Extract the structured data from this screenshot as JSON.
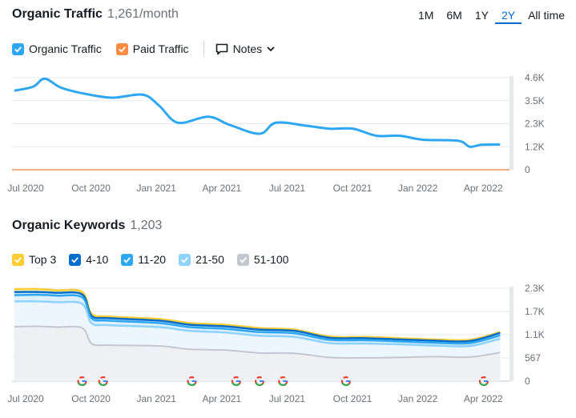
{
  "header1": {
    "title": "Organic Traffic",
    "value": "1,261/month"
  },
  "periods": [
    "1M",
    "6M",
    "1Y",
    "2Y",
    "All time"
  ],
  "active_period": "2Y",
  "legend1": [
    {
      "label": "Organic Traffic",
      "color": "#2ea7f2",
      "checked": true
    },
    {
      "label": "Paid Traffic",
      "color": "#ff8c42",
      "checked": true
    }
  ],
  "notes_label": "Notes",
  "header2": {
    "title": "Organic Keywords",
    "value": "1,203"
  },
  "legend2": [
    {
      "label": "Top 3",
      "color": "#ffcc33",
      "checked": true
    },
    {
      "label": "4-10",
      "color": "#006dca",
      "checked": true
    },
    {
      "label": "11-20",
      "color": "#2ea7f2",
      "checked": true
    },
    {
      "label": "21-50",
      "color": "#8ed3ff",
      "checked": true
    },
    {
      "label": "51-100",
      "color": "#c4c7cf",
      "checked": true
    }
  ],
  "chart_data": [
    {
      "type": "line",
      "title": "Organic Traffic",
      "x_labels": [
        "Jul 2020",
        "Oct 2020",
        "Jan 2021",
        "Apr 2021",
        "Jul 2021",
        "Oct 2021",
        "Jan 2022",
        "Apr 2022"
      ],
      "x_range": [
        2020.5,
        2022.5
      ],
      "y_ticks": [
        "4.6K",
        "3.5K",
        "2.3K",
        "1.2K",
        "0"
      ],
      "ylim": [
        0,
        4600
      ],
      "series": [
        {
          "name": "Organic Traffic",
          "color": "#2ea7f2",
          "points": [
            [
              2020.5,
              3950
            ],
            [
              2020.58,
              4150
            ],
            [
              2020.63,
              4550
            ],
            [
              2020.7,
              4100
            ],
            [
              2020.8,
              3800
            ],
            [
              2020.92,
              3600
            ],
            [
              2021.05,
              3750
            ],
            [
              2021.12,
              3200
            ],
            [
              2021.2,
              2350
            ],
            [
              2021.33,
              2650
            ],
            [
              2021.42,
              2250
            ],
            [
              2021.55,
              1800
            ],
            [
              2021.62,
              2350
            ],
            [
              2021.75,
              2200
            ],
            [
              2021.85,
              2050
            ],
            [
              2021.95,
              2050
            ],
            [
              2022.05,
              1700
            ],
            [
              2022.15,
              1700
            ],
            [
              2022.25,
              1500
            ],
            [
              2022.4,
              1450
            ],
            [
              2022.45,
              1150
            ],
            [
              2022.5,
              1250
            ],
            [
              2022.58,
              1261
            ]
          ]
        },
        {
          "name": "Paid Traffic",
          "color": "#ff8c42",
          "points": [
            [
              2020.5,
              0
            ],
            [
              2022.6,
              0
            ]
          ]
        }
      ]
    },
    {
      "type": "area",
      "title": "Organic Keywords",
      "x_labels": [
        "Jul 2020",
        "Oct 2020",
        "Jan 2021",
        "Apr 2021",
        "Jul 2021",
        "Oct 2021",
        "Jan 2022",
        "Apr 2022"
      ],
      "x_range": [
        2020.5,
        2022.5
      ],
      "y_ticks": [
        "2.3K",
        "1.7K",
        "1.1K",
        "567",
        "0"
      ],
      "ylim": [
        0,
        2270
      ],
      "series": [
        {
          "name": "Top 3",
          "color": "#ffcc33",
          "points": [
            [
              2020.5,
              2250
            ],
            [
              2020.6,
              2250
            ],
            [
              2020.68,
              2220
            ],
            [
              2020.79,
              2180
            ],
            [
              2020.83,
              1650
            ],
            [
              2020.9,
              1580
            ],
            [
              2021.12,
              1520
            ],
            [
              2021.25,
              1420
            ],
            [
              2021.4,
              1380
            ],
            [
              2021.55,
              1300
            ],
            [
              2021.7,
              1260
            ],
            [
              2021.85,
              1090
            ],
            [
              2022.0,
              1080
            ],
            [
              2022.15,
              1050
            ],
            [
              2022.3,
              1020
            ],
            [
              2022.45,
              1010
            ],
            [
              2022.58,
              1203
            ]
          ]
        },
        {
          "name": "4-10",
          "color": "#006dca",
          "points": [
            [
              2020.5,
              2180
            ],
            [
              2020.6,
              2180
            ],
            [
              2020.68,
              2160
            ],
            [
              2020.79,
              2120
            ],
            [
              2020.83,
              1600
            ],
            [
              2020.9,
              1540
            ],
            [
              2021.12,
              1480
            ],
            [
              2021.25,
              1380
            ],
            [
              2021.4,
              1340
            ],
            [
              2021.55,
              1260
            ],
            [
              2021.7,
              1230
            ],
            [
              2021.85,
              1060
            ],
            [
              2022.0,
              1050
            ],
            [
              2022.15,
              1020
            ],
            [
              2022.3,
              990
            ],
            [
              2022.45,
              980
            ],
            [
              2022.58,
              1180
            ]
          ]
        },
        {
          "name": "11-20",
          "color": "#2ea7f2",
          "points": [
            [
              2020.5,
              2100
            ],
            [
              2020.6,
              2110
            ],
            [
              2020.68,
              2090
            ],
            [
              2020.79,
              2050
            ],
            [
              2020.83,
              1540
            ],
            [
              2020.9,
              1480
            ],
            [
              2021.12,
              1420
            ],
            [
              2021.25,
              1320
            ],
            [
              2021.4,
              1280
            ],
            [
              2021.55,
              1200
            ],
            [
              2021.7,
              1170
            ],
            [
              2021.85,
              1010
            ],
            [
              2022.0,
              1000
            ],
            [
              2022.15,
              970
            ],
            [
              2022.3,
              940
            ],
            [
              2022.45,
              930
            ],
            [
              2022.58,
              1120
            ]
          ]
        },
        {
          "name": "21-50",
          "color": "#8ed3ff",
          "points": [
            [
              2020.5,
              1950
            ],
            [
              2020.6,
              1950
            ],
            [
              2020.68,
              1930
            ],
            [
              2020.79,
              1890
            ],
            [
              2020.83,
              1420
            ],
            [
              2020.9,
              1370
            ],
            [
              2021.12,
              1320
            ],
            [
              2021.25,
              1230
            ],
            [
              2021.4,
              1190
            ],
            [
              2021.55,
              1110
            ],
            [
              2021.7,
              1080
            ],
            [
              2021.85,
              930
            ],
            [
              2022.0,
              920
            ],
            [
              2022.15,
              900
            ],
            [
              2022.3,
              870
            ],
            [
              2022.45,
              860
            ],
            [
              2022.58,
              1040
            ]
          ]
        },
        {
          "name": "51-100",
          "color": "#c4c7cf",
          "points": [
            [
              2020.5,
              1330
            ],
            [
              2020.6,
              1340
            ],
            [
              2020.68,
              1320
            ],
            [
              2020.79,
              1300
            ],
            [
              2020.83,
              920
            ],
            [
              2020.9,
              880
            ],
            [
              2021.12,
              860
            ],
            [
              2021.25,
              780
            ],
            [
              2021.4,
              760
            ],
            [
              2021.55,
              690
            ],
            [
              2021.7,
              680
            ],
            [
              2021.85,
              580
            ],
            [
              2022.0,
              570
            ],
            [
              2022.15,
              580
            ],
            [
              2022.3,
              600
            ],
            [
              2022.45,
              590
            ],
            [
              2022.58,
              700
            ]
          ]
        }
      ],
      "google_markers_x": [
        2020.79,
        2020.88,
        2021.26,
        2021.45,
        2021.55,
        2021.65,
        2021.92,
        2022.51
      ]
    }
  ]
}
